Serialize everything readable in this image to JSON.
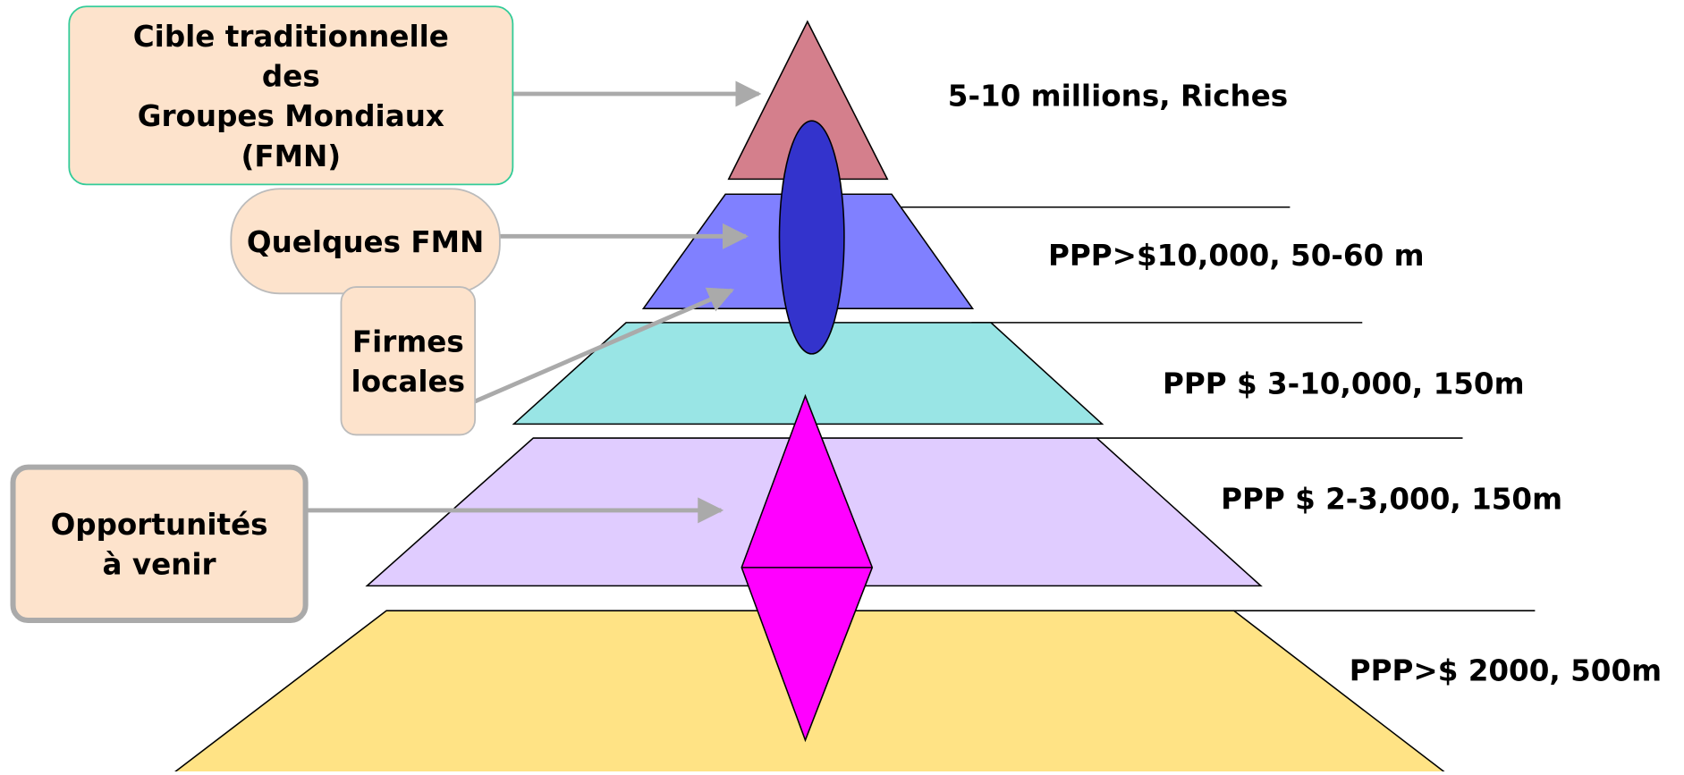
{
  "tiers": [
    {
      "label": "5-10 millions, Riches"
    },
    {
      "label": "PPP>$10,000, 50-60 m"
    },
    {
      "label": "PPP $ 3-10,000, 150m"
    },
    {
      "label": "PPP $ 2-3,000, 150m"
    },
    {
      "label": "PPP>$ 2000, 500m"
    }
  ],
  "callouts": [
    {
      "lines": [
        "Cible traditionnelle",
        "des",
        "Groupes Mondiaux",
        "(FMN)"
      ]
    },
    {
      "lines": [
        "Quelques FMN"
      ]
    },
    {
      "lines": [
        "Firmes",
        "locales"
      ]
    },
    {
      "lines": [
        "Opportunités",
        "à venir"
      ]
    }
  ]
}
